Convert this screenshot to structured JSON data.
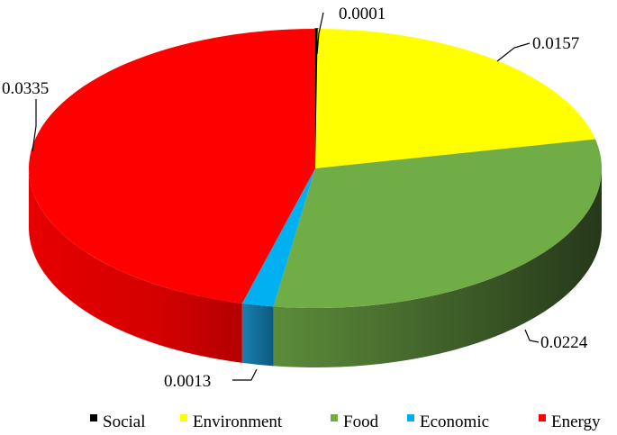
{
  "chart_data": {
    "type": "pie",
    "style": "3d",
    "categories": [
      "Social",
      "Environment",
      "Food",
      "Economic",
      "Energy"
    ],
    "values": [
      0.0001,
      0.0157,
      0.0224,
      0.0013,
      0.0335
    ],
    "data_labels": [
      "0.0001",
      "0.0157",
      "0.0224",
      "0.0013",
      "0.0335"
    ],
    "colors": [
      "#000000",
      "#ffff00",
      "#70ad47",
      "#00b0f0",
      "#ff0000"
    ],
    "legend_position": "bottom",
    "title": ""
  }
}
